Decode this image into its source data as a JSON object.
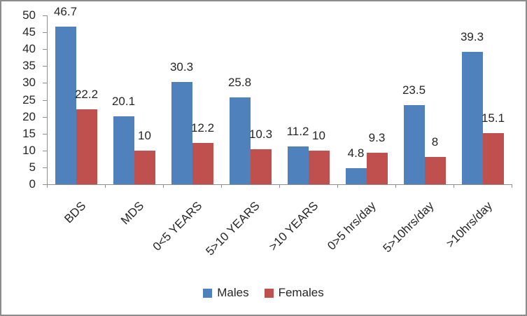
{
  "chart_data": {
    "type": "bar",
    "title": "",
    "categories": [
      "BDS",
      "MDS",
      "0<5 YEARS",
      "5>10 YEARS",
      ">10 YEARS",
      "0>5 hrs/day",
      "5>10hrs/day",
      ">10hrs/day"
    ],
    "series": [
      {
        "name": "Males",
        "color": "#4F81BD",
        "values": [
          46.7,
          20.1,
          30.3,
          25.8,
          11.2,
          4.8,
          23.5,
          39.3
        ]
      },
      {
        "name": "Females",
        "color": "#C0504D",
        "values": [
          22.2,
          10,
          12.2,
          10.3,
          10,
          9.3,
          8,
          15.1
        ]
      }
    ],
    "ylim": [
      0,
      50
    ],
    "yticks": [
      0,
      5,
      10,
      15,
      20,
      25,
      30,
      35,
      40,
      45,
      50
    ],
    "xlabel": "",
    "ylabel": "",
    "grid": false,
    "data_labels": true,
    "legend_position": "bottom"
  },
  "colors": {
    "axis_line": "#8E8E8E",
    "frame_border": "#8C8C8C",
    "text": "#262626",
    "background": "#FFFFFF"
  }
}
